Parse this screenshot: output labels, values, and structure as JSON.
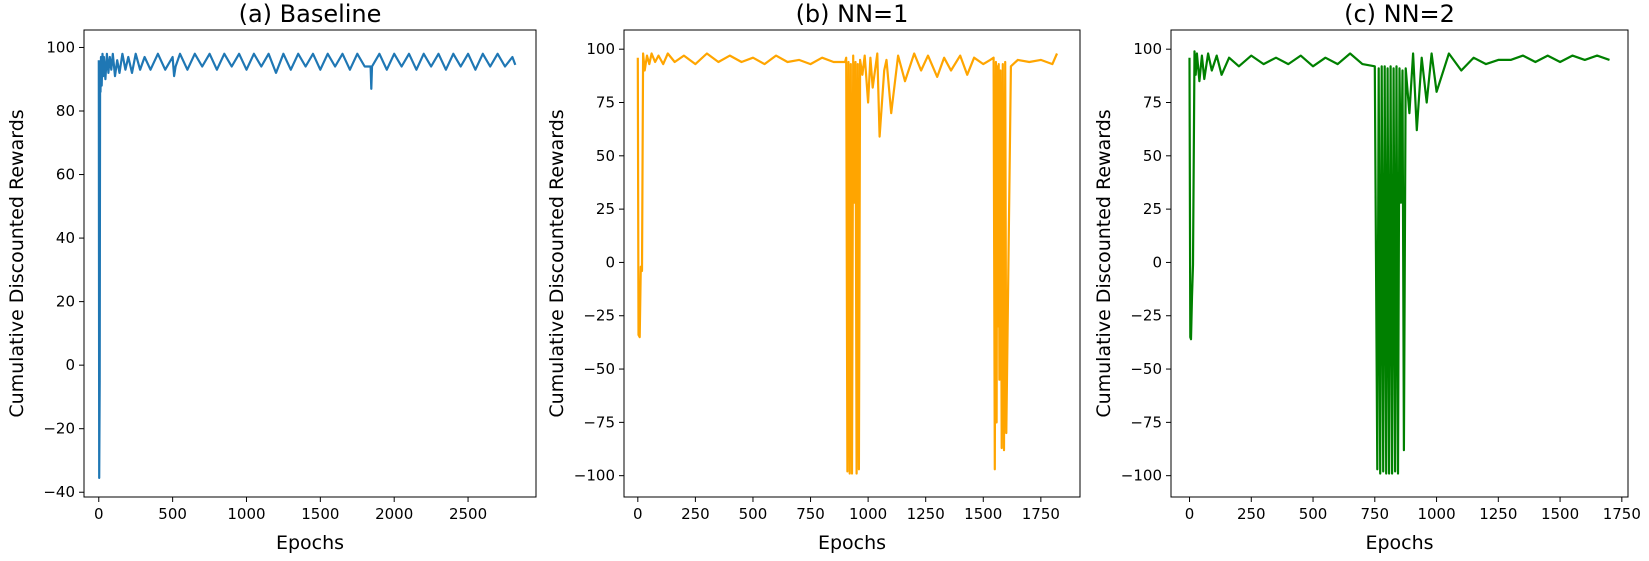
{
  "chart_data": [
    {
      "type": "line",
      "title": "(a) Baseline",
      "xlabel": "Epochs",
      "ylabel": "Cumulative Discounted Rewards",
      "xlim": [
        -100,
        2960
      ],
      "ylim": [
        -41.5,
        105.5
      ],
      "xticks": [
        0,
        500,
        1000,
        1500,
        2000,
        2500
      ],
      "yticks": [
        -40,
        -20,
        0,
        20,
        40,
        60,
        80,
        100
      ],
      "grid": false,
      "color": "#1f77b4",
      "series": [
        {
          "x": [
            0,
            3,
            6,
            9,
            12,
            15,
            20,
            25,
            30,
            35,
            45,
            55,
            65,
            75,
            85,
            95,
            110,
            125,
            140,
            160,
            180,
            200,
            225,
            250,
            280,
            310,
            350,
            400,
            450,
            500,
            510,
            520,
            550,
            600,
            650,
            700,
            750,
            800,
            850,
            900,
            950,
            1000,
            1050,
            1100,
            1150,
            1200,
            1250,
            1300,
            1350,
            1400,
            1450,
            1500,
            1550,
            1600,
            1650,
            1700,
            1750,
            1800,
            1840,
            1845,
            1850,
            1900,
            1950,
            2000,
            2050,
            2100,
            2150,
            2200,
            2250,
            2300,
            2350,
            2400,
            2450,
            2500,
            2550,
            2600,
            2650,
            2700,
            2750,
            2800,
            2820
          ],
          "y": [
            96,
            -35.5,
            -5,
            92,
            86,
            97,
            88,
            98,
            91,
            97,
            90,
            98,
            92,
            97,
            93,
            98,
            91,
            96,
            92,
            98,
            93,
            97,
            92,
            98,
            93,
            97,
            93,
            98,
            93,
            97,
            91,
            94,
            98,
            93,
            98,
            94,
            98,
            93,
            98,
            94,
            98,
            93,
            98,
            94,
            98,
            92,
            98,
            93,
            98,
            94,
            98,
            93,
            98,
            94,
            98,
            93,
            98,
            94,
            94,
            87,
            94,
            98,
            93,
            98,
            94,
            98,
            93,
            98,
            94,
            98,
            93,
            98,
            94,
            98,
            93,
            98,
            94,
            98,
            94,
            97,
            94.5
          ]
        }
      ]
    },
    {
      "type": "line",
      "title": "(b) NN=1",
      "xlabel": "Epochs",
      "ylabel": "Cumulative Discounted Rewards",
      "xlim": [
        -60,
        1920
      ],
      "ylim": [
        -110,
        109
      ],
      "xticks": [
        0,
        250,
        500,
        750,
        1000,
        1250,
        1500,
        1750
      ],
      "yticks": [
        -100,
        -75,
        -50,
        -25,
        0,
        25,
        50,
        75,
        100
      ],
      "grid": false,
      "color": "#ffa500",
      "series": [
        {
          "x": [
            0,
            3,
            8,
            13,
            18,
            23,
            30,
            40,
            50,
            60,
            75,
            90,
            110,
            130,
            160,
            200,
            250,
            300,
            350,
            400,
            450,
            500,
            550,
            600,
            650,
            700,
            750,
            800,
            850,
            880,
            900,
            905,
            910,
            915,
            920,
            925,
            930,
            935,
            940,
            945,
            950,
            955,
            960,
            965,
            975,
            985,
            1000,
            1010,
            1020,
            1040,
            1050,
            1070,
            1080,
            1100,
            1130,
            1160,
            1200,
            1230,
            1260,
            1300,
            1330,
            1360,
            1400,
            1430,
            1460,
            1500,
            1530,
            1545,
            1550,
            1555,
            1558,
            1561,
            1564,
            1567,
            1570,
            1575,
            1580,
            1585,
            1590,
            1595,
            1600,
            1620,
            1650,
            1700,
            1750,
            1800,
            1820
          ],
          "y": [
            96,
            -34,
            -35,
            -2,
            -4,
            98,
            90,
            97,
            93,
            98,
            94,
            97,
            93,
            98,
            94,
            97,
            93,
            98,
            94,
            97,
            94,
            96,
            93,
            97,
            94,
            95,
            93,
            96,
            94,
            94,
            94,
            96,
            -98,
            94,
            -99,
            93,
            -99,
            97,
            28,
            94,
            -99,
            93,
            -97,
            95,
            88,
            97,
            75,
            96,
            82,
            98,
            59,
            90,
            95,
            70,
            97,
            85,
            98,
            90,
            97,
            87,
            96,
            90,
            97,
            88,
            96,
            93,
            95,
            96,
            -97,
            94,
            -75,
            92,
            -30,
            93,
            -55,
            90,
            -87,
            93,
            -88,
            94,
            -80,
            92,
            95,
            94,
            95,
            93,
            98
          ]
        }
      ]
    },
    {
      "type": "line",
      "title": "(c) NN=2",
      "xlabel": "Epochs",
      "ylabel": "Cumulative Discounted Rewards",
      "xlim": [
        -75,
        1775
      ],
      "ylim": [
        -110,
        109
      ],
      "xticks": [
        0,
        250,
        500,
        750,
        1000,
        1250,
        1500,
        1750
      ],
      "yticks": [
        -100,
        -75,
        -50,
        -25,
        0,
        25,
        50,
        75,
        100
      ],
      "grid": false,
      "color": "#008000",
      "series": [
        {
          "x": [
            0,
            3,
            6,
            10,
            14,
            20,
            25,
            30,
            40,
            50,
            60,
            75,
            90,
            110,
            130,
            160,
            200,
            250,
            300,
            350,
            400,
            450,
            500,
            550,
            600,
            650,
            700,
            750,
            760,
            766,
            772,
            778,
            784,
            790,
            796,
            802,
            808,
            814,
            820,
            826,
            832,
            838,
            844,
            850,
            856,
            862,
            868,
            875,
            890,
            905,
            920,
            940,
            960,
            980,
            1000,
            1050,
            1100,
            1150,
            1200,
            1250,
            1300,
            1350,
            1400,
            1450,
            1500,
            1550,
            1600,
            1650,
            1700
          ],
          "y": [
            96,
            -35,
            -36,
            -16,
            -1,
            99,
            88,
            98,
            85,
            97,
            86,
            98,
            90,
            97,
            88,
            96,
            92,
            97,
            93,
            96,
            93,
            97,
            92,
            96,
            93,
            98,
            93,
            92,
            -97,
            91,
            -99,
            92,
            -98,
            92,
            -99,
            91,
            -99,
            92,
            -99,
            91,
            -98,
            92,
            -99,
            91,
            28,
            90,
            -88,
            91,
            70,
            98,
            62,
            96,
            75,
            98,
            80,
            98,
            90,
            96,
            93,
            95,
            95,
            97,
            94,
            97,
            94,
            97,
            95,
            97,
            95
          ]
        }
      ]
    }
  ]
}
